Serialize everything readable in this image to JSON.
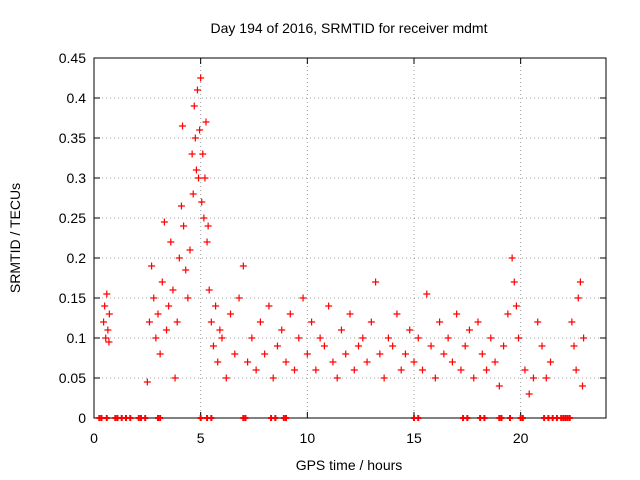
{
  "chart_data": {
    "type": "scatter",
    "title": "Day 194 of 2016, SRMTID for receiver mdmt",
    "xlabel": "GPS time / hours",
    "ylabel": "SRMTID / TECUs",
    "xlim": [
      0,
      24
    ],
    "ylim": [
      0,
      0.45
    ],
    "xticks": [
      0,
      5,
      10,
      15,
      20
    ],
    "yticks": [
      0,
      0.05,
      0.1,
      0.15,
      0.2,
      0.25,
      0.3,
      0.35,
      0.4,
      0.45
    ],
    "ytick_labels": [
      "0",
      "0.05",
      "0.1",
      "0.15",
      "0.2",
      "0.25",
      "0.3",
      "0.35",
      "0.4",
      "0.45"
    ],
    "grid": true,
    "marker": "+",
    "series": [
      {
        "color": "#ff0000",
        "points": [
          [
            0.45,
            0.12
          ],
          [
            0.5,
            0.14
          ],
          [
            0.55,
            0.1
          ],
          [
            0.6,
            0.155
          ],
          [
            0.65,
            0.11
          ],
          [
            0.7,
            0.095
          ],
          [
            0.72,
            0.13
          ],
          [
            2.5,
            0.045
          ],
          [
            2.6,
            0.12
          ],
          [
            2.7,
            0.19
          ],
          [
            2.8,
            0.15
          ],
          [
            2.9,
            0.1
          ],
          [
            3.0,
            0.13
          ],
          [
            3.1,
            0.08
          ],
          [
            3.2,
            0.17
          ],
          [
            3.3,
            0.245
          ],
          [
            3.4,
            0.11
          ],
          [
            3.5,
            0.14
          ],
          [
            3.6,
            0.22
          ],
          [
            3.7,
            0.16
          ],
          [
            3.8,
            0.05
          ],
          [
            3.9,
            0.12
          ],
          [
            4.0,
            0.2
          ],
          [
            4.1,
            0.265
          ],
          [
            4.15,
            0.365
          ],
          [
            4.2,
            0.24
          ],
          [
            4.3,
            0.185
          ],
          [
            4.4,
            0.15
          ],
          [
            4.5,
            0.21
          ],
          [
            4.6,
            0.33
          ],
          [
            4.65,
            0.28
          ],
          [
            4.7,
            0.39
          ],
          [
            4.75,
            0.35
          ],
          [
            4.8,
            0.31
          ],
          [
            4.85,
            0.41
          ],
          [
            4.9,
            0.3
          ],
          [
            4.95,
            0.36
          ],
          [
            5.0,
            0.425
          ],
          [
            5.05,
            0.27
          ],
          [
            5.1,
            0.33
          ],
          [
            5.15,
            0.25
          ],
          [
            5.2,
            0.3
          ],
          [
            5.25,
            0.37
          ],
          [
            5.3,
            0.22
          ],
          [
            5.35,
            0.24
          ],
          [
            5.4,
            0.16
          ],
          [
            5.5,
            0.12
          ],
          [
            5.6,
            0.09
          ],
          [
            5.7,
            0.14
          ],
          [
            5.8,
            0.07
          ],
          [
            5.9,
            0.11
          ],
          [
            6.0,
            0.1
          ],
          [
            6.2,
            0.05
          ],
          [
            6.4,
            0.13
          ],
          [
            6.6,
            0.08
          ],
          [
            6.8,
            0.15
          ],
          [
            7.0,
            0.19
          ],
          [
            7.2,
            0.07
          ],
          [
            7.4,
            0.1
          ],
          [
            7.6,
            0.06
          ],
          [
            7.8,
            0.12
          ],
          [
            8.0,
            0.08
          ],
          [
            8.2,
            0.14
          ],
          [
            8.4,
            0.05
          ],
          [
            8.6,
            0.09
          ],
          [
            8.8,
            0.11
          ],
          [
            9.0,
            0.07
          ],
          [
            9.2,
            0.13
          ],
          [
            9.4,
            0.06
          ],
          [
            9.6,
            0.1
          ],
          [
            9.8,
            0.15
          ],
          [
            10.0,
            0.08
          ],
          [
            10.2,
            0.12
          ],
          [
            10.4,
            0.06
          ],
          [
            10.6,
            0.1
          ],
          [
            10.8,
            0.09
          ],
          [
            11.0,
            0.14
          ],
          [
            11.2,
            0.07
          ],
          [
            11.4,
            0.05
          ],
          [
            11.6,
            0.11
          ],
          [
            11.8,
            0.08
          ],
          [
            12.0,
            0.13
          ],
          [
            12.2,
            0.06
          ],
          [
            12.4,
            0.09
          ],
          [
            12.6,
            0.1
          ],
          [
            12.8,
            0.07
          ],
          [
            13.0,
            0.12
          ],
          [
            13.2,
            0.17
          ],
          [
            13.4,
            0.08
          ],
          [
            13.6,
            0.05
          ],
          [
            13.8,
            0.1
          ],
          [
            14.0,
            0.09
          ],
          [
            14.2,
            0.13
          ],
          [
            14.4,
            0.06
          ],
          [
            14.6,
            0.08
          ],
          [
            14.8,
            0.11
          ],
          [
            15.0,
            0.07
          ],
          [
            15.2,
            0.1
          ],
          [
            15.4,
            0.06
          ],
          [
            15.6,
            0.155
          ],
          [
            15.8,
            0.09
          ],
          [
            16.0,
            0.05
          ],
          [
            16.2,
            0.12
          ],
          [
            16.4,
            0.08
          ],
          [
            16.6,
            0.1
          ],
          [
            16.8,
            0.07
          ],
          [
            17.0,
            0.13
          ],
          [
            17.2,
            0.06
          ],
          [
            17.4,
            0.09
          ],
          [
            17.6,
            0.11
          ],
          [
            17.8,
            0.05
          ],
          [
            18.0,
            0.12
          ],
          [
            18.2,
            0.08
          ],
          [
            18.4,
            0.06
          ],
          [
            18.6,
            0.1
          ],
          [
            18.8,
            0.07
          ],
          [
            19.0,
            0.04
          ],
          [
            19.2,
            0.09
          ],
          [
            19.4,
            0.13
          ],
          [
            19.6,
            0.2
          ],
          [
            19.7,
            0.17
          ],
          [
            19.8,
            0.14
          ],
          [
            19.9,
            0.1
          ],
          [
            20.2,
            0.06
          ],
          [
            20.4,
            0.03
          ],
          [
            20.6,
            0.05
          ],
          [
            20.8,
            0.12
          ],
          [
            21.0,
            0.09
          ],
          [
            21.2,
            0.05
          ],
          [
            21.4,
            0.07
          ],
          [
            22.4,
            0.12
          ],
          [
            22.5,
            0.09
          ],
          [
            22.6,
            0.06
          ],
          [
            22.7,
            0.15
          ],
          [
            22.8,
            0.17
          ],
          [
            22.9,
            0.04
          ],
          [
            22.95,
            0.1
          ]
        ]
      }
    ],
    "zero_points_x": [
      0.25,
      0.35,
      0.6,
      1.0,
      1.1,
      1.3,
      1.5,
      1.7,
      2.1,
      2.2,
      2.4,
      3.0,
      3.1,
      5.0,
      5.3,
      5.5,
      7.0,
      7.1,
      8.3,
      8.5,
      8.9,
      9.0,
      15.0,
      15.2,
      17.3,
      17.5,
      18.1,
      18.3,
      19.0,
      19.1,
      19.5,
      20.0,
      20.1,
      21.1,
      21.3,
      21.5,
      21.7,
      21.9,
      22.0,
      22.1,
      22.2,
      22.3
    ]
  }
}
